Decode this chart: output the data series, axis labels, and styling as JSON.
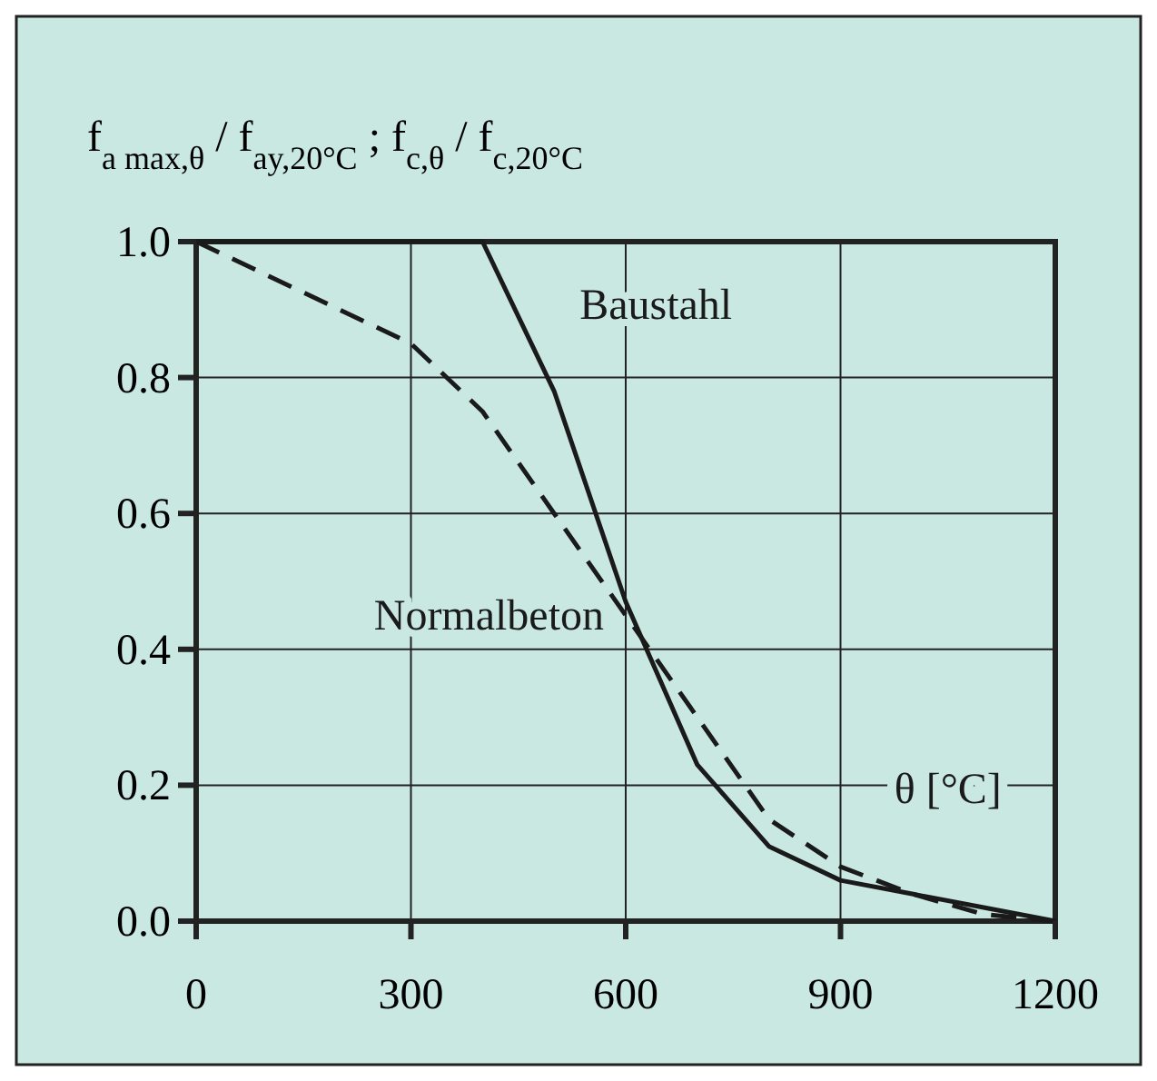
{
  "chart_data": {
    "type": "line",
    "ylabel": "f$_{a max,θ}$ / f$_{ay,20°C}$ ; f$_{c,θ}$ / f$_{c,20°C}$",
    "xlabel": "θ [°C]",
    "x": [
      0,
      300,
      400,
      500,
      600,
      700,
      800,
      900,
      1000,
      1100,
      1200
    ],
    "series": [
      {
        "name": "Baustahl",
        "color": "#1a1a1a",
        "line_style": "solid",
        "values": [
          1.0,
          1.0,
          1.0,
          0.78,
          0.47,
          0.23,
          0.11,
          0.06,
          0.04,
          0.02,
          0.0
        ]
      },
      {
        "name": "Normalbeton",
        "color": "#1a1a1a",
        "line_style": "dashed",
        "values": [
          1.0,
          0.85,
          0.75,
          0.6,
          0.45,
          0.3,
          0.15,
          0.08,
          0.04,
          0.01,
          0.0
        ]
      }
    ],
    "xlim": [
      0,
      1200
    ],
    "xticks": [
      0,
      300,
      600,
      900,
      1200
    ],
    "ylim": [
      0,
      1
    ],
    "yticks": [
      {
        "value": 0,
        "label": "0.0"
      },
      {
        "value": 0.2,
        "label": "0.2"
      },
      {
        "value": 0.4,
        "label": "0.4"
      },
      {
        "value": 0.6,
        "label": "0.6"
      },
      {
        "value": 0.8,
        "label": "0.8"
      },
      {
        "value": 1,
        "label": "1.0"
      }
    ],
    "grid": true,
    "marker": "none"
  }
}
